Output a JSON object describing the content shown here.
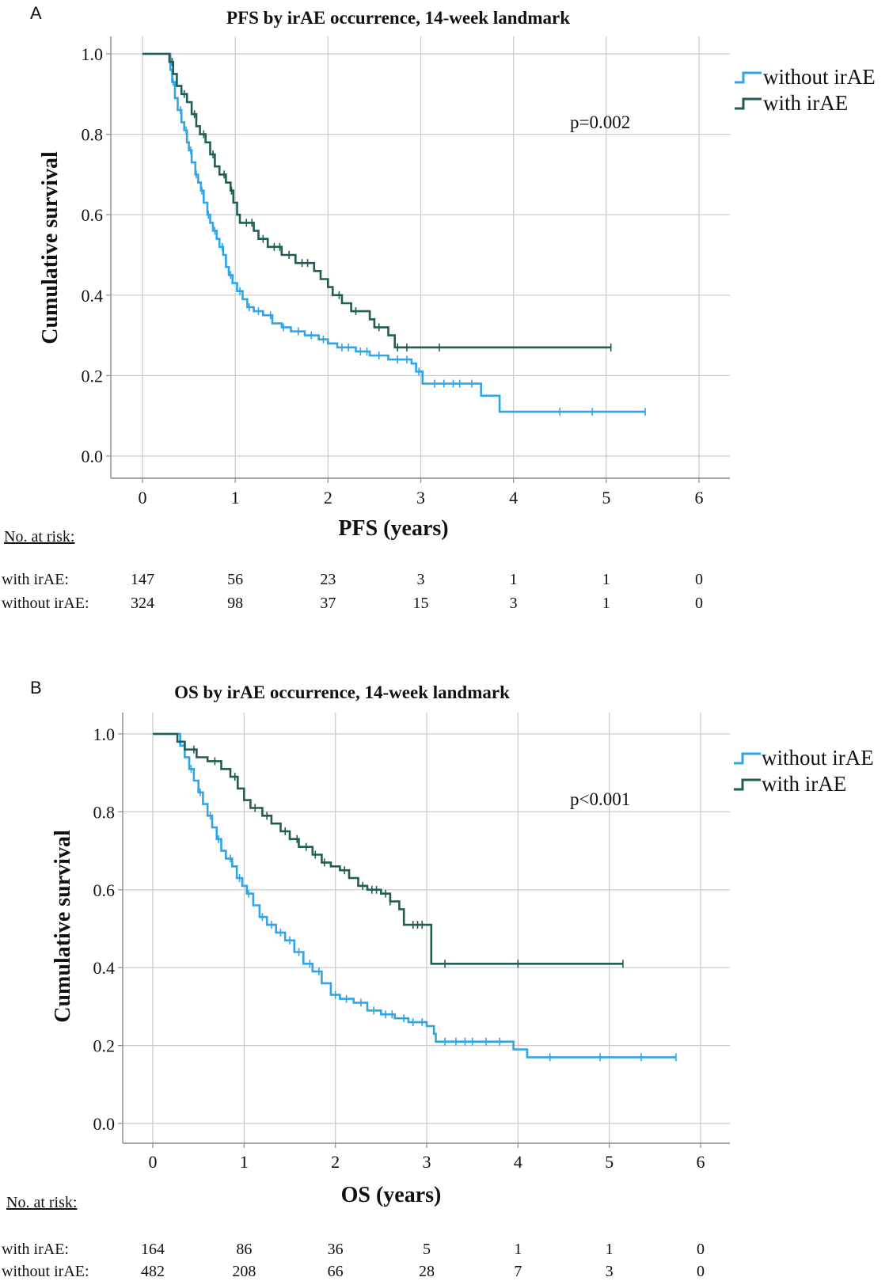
{
  "panels": [
    {
      "letter": "A",
      "title": "PFS by irAE occurrence, 14-week landmark",
      "p_value": "p=0.002",
      "legend": [
        "without irAE",
        "with irAE"
      ],
      "risk_header": "No. at risk:",
      "risk_rows": [
        {
          "label": "with irAE:",
          "values": [
            "147",
            "56",
            "23",
            "3",
            "1",
            "1",
            "0"
          ]
        },
        {
          "label": "without irAE:",
          "values": [
            "324",
            "98",
            "37",
            "15",
            "3",
            "1",
            "0"
          ]
        }
      ]
    },
    {
      "letter": "B",
      "title": "OS by irAE occurrence, 14-week landmark",
      "p_value": "p<0.001",
      "legend": [
        "without irAE",
        "with irAE"
      ],
      "risk_header": "No. at risk:",
      "risk_rows": [
        {
          "label": "with irAE:",
          "values": [
            "164",
            "86",
            "36",
            "5",
            "1",
            "1",
            "0"
          ]
        },
        {
          "label": "without irAE:",
          "values": [
            "482",
            "208",
            "66",
            "28",
            "7",
            "3",
            "0"
          ]
        }
      ]
    }
  ],
  "chart_data": [
    {
      "type": "line",
      "subtype": "kaplan-meier-step",
      "title": "PFS by irAE occurrence, 14-week landmark",
      "xlabel": "PFS (years)",
      "ylabel": "Cumulative survival",
      "xlim": [
        0,
        6
      ],
      "ylim": [
        0,
        1
      ],
      "xticks": [
        "0",
        "1",
        "2",
        "3",
        "4",
        "5",
        "6"
      ],
      "yticks": [
        "0.0",
        "0.2",
        "0.4",
        "0.6",
        "0.8",
        "1.0"
      ],
      "grid": true,
      "legend_position": "top-right",
      "series": [
        {
          "name": "without irAE",
          "color": "#2fa4e7",
          "steps": [
            [
              0,
              1.0
            ],
            [
              0.28,
              1.0
            ],
            [
              0.3,
              0.96
            ],
            [
              0.32,
              0.93
            ],
            [
              0.35,
              0.89
            ],
            [
              0.38,
              0.86
            ],
            [
              0.42,
              0.83
            ],
            [
              0.45,
              0.81
            ],
            [
              0.48,
              0.78
            ],
            [
              0.5,
              0.76
            ],
            [
              0.53,
              0.73
            ],
            [
              0.57,
              0.7
            ],
            [
              0.6,
              0.68
            ],
            [
              0.63,
              0.66
            ],
            [
              0.66,
              0.63
            ],
            [
              0.7,
              0.6
            ],
            [
              0.73,
              0.58
            ],
            [
              0.76,
              0.56
            ],
            [
              0.8,
              0.54
            ],
            [
              0.83,
              0.52
            ],
            [
              0.87,
              0.5
            ],
            [
              0.9,
              0.47
            ],
            [
              0.93,
              0.45
            ],
            [
              0.97,
              0.43
            ],
            [
              1.02,
              0.41
            ],
            [
              1.08,
              0.39
            ],
            [
              1.13,
              0.37
            ],
            [
              1.2,
              0.36
            ],
            [
              1.3,
              0.35
            ],
            [
              1.4,
              0.33
            ],
            [
              1.5,
              0.32
            ],
            [
              1.6,
              0.31
            ],
            [
              1.75,
              0.3
            ],
            [
              1.9,
              0.29
            ],
            [
              2.0,
              0.28
            ],
            [
              2.1,
              0.27
            ],
            [
              2.3,
              0.26
            ],
            [
              2.45,
              0.25
            ],
            [
              2.65,
              0.24
            ],
            [
              2.9,
              0.23
            ],
            [
              2.95,
              0.21
            ],
            [
              3.02,
              0.18
            ],
            [
              3.65,
              0.15
            ],
            [
              3.85,
              0.11
            ],
            [
              5.42,
              0.11
            ]
          ],
          "censor_x": [
            0.33,
            0.41,
            0.47,
            0.52,
            0.58,
            0.64,
            0.71,
            0.78,
            0.86,
            0.95,
            1.05,
            1.15,
            1.25,
            1.38,
            1.52,
            1.68,
            1.82,
            1.95,
            2.15,
            2.22,
            2.35,
            2.42,
            2.55,
            2.75,
            2.85,
            2.98,
            3.15,
            3.25,
            3.35,
            3.42,
            3.55,
            4.5,
            4.85,
            5.42
          ]
        },
        {
          "name": "with irAE",
          "color": "#1f5d55",
          "steps": [
            [
              0,
              1.0
            ],
            [
              0.26,
              1.0
            ],
            [
              0.29,
              0.98
            ],
            [
              0.33,
              0.95
            ],
            [
              0.37,
              0.92
            ],
            [
              0.42,
              0.9
            ],
            [
              0.48,
              0.88
            ],
            [
              0.53,
              0.85
            ],
            [
              0.58,
              0.82
            ],
            [
              0.62,
              0.8
            ],
            [
              0.68,
              0.78
            ],
            [
              0.73,
              0.75
            ],
            [
              0.78,
              0.72
            ],
            [
              0.83,
              0.7
            ],
            [
              0.9,
              0.68
            ],
            [
              0.95,
              0.66
            ],
            [
              0.98,
              0.63
            ],
            [
              1.02,
              0.6
            ],
            [
              1.05,
              0.58
            ],
            [
              1.2,
              0.56
            ],
            [
              1.25,
              0.54
            ],
            [
              1.35,
              0.52
            ],
            [
              1.5,
              0.5
            ],
            [
              1.65,
              0.48
            ],
            [
              1.85,
              0.46
            ],
            [
              1.92,
              0.44
            ],
            [
              2.0,
              0.42
            ],
            [
              2.05,
              0.4
            ],
            [
              2.15,
              0.38
            ],
            [
              2.25,
              0.36
            ],
            [
              2.45,
              0.34
            ],
            [
              2.5,
              0.32
            ],
            [
              2.65,
              0.3
            ],
            [
              2.72,
              0.27
            ],
            [
              5.05,
              0.27
            ]
          ],
          "censor_x": [
            0.32,
            0.45,
            0.56,
            0.66,
            0.76,
            0.88,
            0.96,
            1.12,
            1.18,
            1.3,
            1.42,
            1.48,
            1.58,
            1.72,
            1.78,
            2.12,
            2.3,
            2.55,
            2.75,
            2.85,
            3.2,
            5.05
          ]
        }
      ]
    },
    {
      "type": "line",
      "subtype": "kaplan-meier-step",
      "title": "OS by irAE occurrence, 14-week landmark",
      "xlabel": "OS (years)",
      "ylabel": "Cumulative survival",
      "xlim": [
        0,
        6
      ],
      "ylim": [
        0,
        1
      ],
      "xticks": [
        "0",
        "1",
        "2",
        "3",
        "4",
        "5",
        "6"
      ],
      "yticks": [
        "0.0",
        "0.2",
        "0.4",
        "0.6",
        "0.8",
        "1.0"
      ],
      "grid": true,
      "legend_position": "top-right",
      "series": [
        {
          "name": "without irAE",
          "color": "#2fa4e7",
          "steps": [
            [
              0,
              1.0
            ],
            [
              0.25,
              1.0
            ],
            [
              0.3,
              0.97
            ],
            [
              0.35,
              0.94
            ],
            [
              0.4,
              0.91
            ],
            [
              0.45,
              0.88
            ],
            [
              0.5,
              0.85
            ],
            [
              0.55,
              0.82
            ],
            [
              0.6,
              0.79
            ],
            [
              0.65,
              0.76
            ],
            [
              0.7,
              0.73
            ],
            [
              0.75,
              0.7
            ],
            [
              0.8,
              0.68
            ],
            [
              0.87,
              0.66
            ],
            [
              0.92,
              0.63
            ],
            [
              0.98,
              0.61
            ],
            [
              1.03,
              0.59
            ],
            [
              1.1,
              0.56
            ],
            [
              1.17,
              0.53
            ],
            [
              1.25,
              0.51
            ],
            [
              1.35,
              0.49
            ],
            [
              1.45,
              0.47
            ],
            [
              1.55,
              0.44
            ],
            [
              1.65,
              0.41
            ],
            [
              1.75,
              0.39
            ],
            [
              1.85,
              0.36
            ],
            [
              1.95,
              0.33
            ],
            [
              2.05,
              0.32
            ],
            [
              2.2,
              0.31
            ],
            [
              2.35,
              0.29
            ],
            [
              2.5,
              0.28
            ],
            [
              2.65,
              0.27
            ],
            [
              2.8,
              0.26
            ],
            [
              3.0,
              0.25
            ],
            [
              3.08,
              0.23
            ],
            [
              3.1,
              0.21
            ],
            [
              3.92,
              0.21
            ],
            [
              3.95,
              0.19
            ],
            [
              4.1,
              0.17
            ],
            [
              5.73,
              0.17
            ]
          ],
          "censor_x": [
            0.42,
            0.52,
            0.63,
            0.72,
            0.85,
            0.95,
            1.05,
            1.2,
            1.3,
            1.4,
            1.5,
            1.6,
            1.72,
            1.82,
            2.0,
            2.12,
            2.28,
            2.42,
            2.55,
            2.62,
            2.75,
            2.85,
            2.95,
            3.2,
            3.32,
            3.42,
            3.5,
            3.65,
            3.8,
            4.35,
            4.9,
            5.35,
            5.73
          ]
        },
        {
          "name": "with irAE",
          "color": "#1f5d55",
          "steps": [
            [
              0,
              1.0
            ],
            [
              0.22,
              1.0
            ],
            [
              0.27,
              0.98
            ],
            [
              0.35,
              0.96
            ],
            [
              0.48,
              0.94
            ],
            [
              0.6,
              0.93
            ],
            [
              0.75,
              0.91
            ],
            [
              0.85,
              0.89
            ],
            [
              0.93,
              0.86
            ],
            [
              1.0,
              0.83
            ],
            [
              1.07,
              0.81
            ],
            [
              1.2,
              0.79
            ],
            [
              1.3,
              0.77
            ],
            [
              1.4,
              0.75
            ],
            [
              1.5,
              0.73
            ],
            [
              1.6,
              0.71
            ],
            [
              1.75,
              0.69
            ],
            [
              1.85,
              0.67
            ],
            [
              1.95,
              0.66
            ],
            [
              2.05,
              0.65
            ],
            [
              2.15,
              0.63
            ],
            [
              2.25,
              0.61
            ],
            [
              2.35,
              0.6
            ],
            [
              2.5,
              0.59
            ],
            [
              2.6,
              0.57
            ],
            [
              2.7,
              0.55
            ],
            [
              2.75,
              0.51
            ],
            [
              2.95,
              0.51
            ],
            [
              3.05,
              0.41
            ],
            [
              5.15,
              0.41
            ]
          ],
          "censor_x": [
            0.45,
            0.68,
            0.9,
            1.12,
            1.25,
            1.45,
            1.58,
            1.68,
            1.78,
            1.88,
            2.1,
            2.3,
            2.4,
            2.45,
            2.55,
            2.6,
            2.85,
            2.9,
            2.95,
            3.2,
            4.0,
            5.15
          ]
        }
      ]
    }
  ]
}
